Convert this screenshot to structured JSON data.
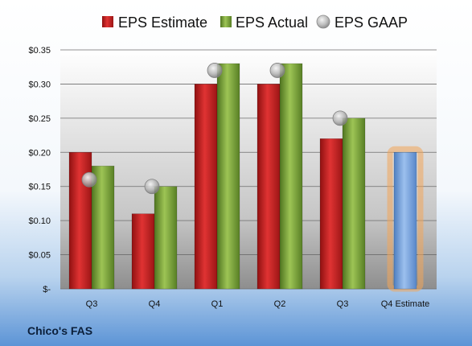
{
  "chart_data": {
    "type": "bar",
    "categories": [
      "Q3",
      "Q4",
      "Q1",
      "Q2",
      "Q3",
      "Q4 Estimate"
    ],
    "series": [
      {
        "name": "EPS Estimate",
        "values": [
          0.2,
          0.11,
          0.3,
          0.3,
          0.22,
          null
        ],
        "color": "#c8201f"
      },
      {
        "name": "EPS Actual",
        "values": [
          0.18,
          0.15,
          0.33,
          0.33,
          0.25,
          null
        ],
        "color": "#7ea63a"
      },
      {
        "name": "EPS GAAP",
        "marker": "circle",
        "values": [
          0.16,
          0.15,
          0.32,
          0.32,
          0.25,
          null
        ],
        "color": "#b0b0b0"
      }
    ],
    "estimate_bar": {
      "category": "Q4 Estimate",
      "value": 0.2,
      "color": "#6f9ad6",
      "glow": "#f2a65a"
    },
    "y_ticks": [
      "$-",
      "$0.05",
      "$0.10",
      "$0.15",
      "$0.20",
      "$0.25",
      "$0.30",
      "$0.35"
    ],
    "ylim": [
      0,
      0.35
    ],
    "grid": true,
    "legend_position": "top",
    "footer": "Chico's FAS"
  }
}
